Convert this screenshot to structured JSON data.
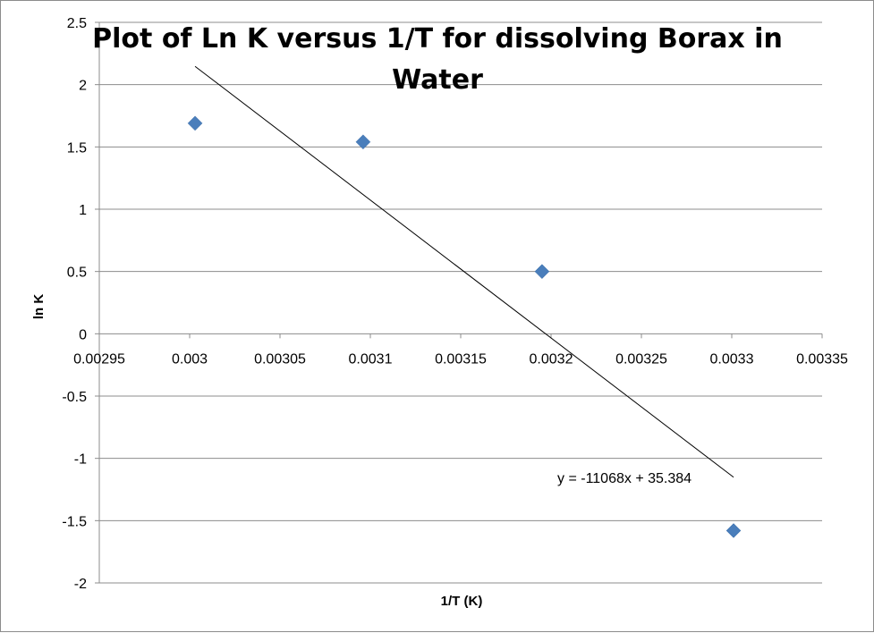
{
  "chart_data": {
    "type": "scatter",
    "title_line1": "Plot of Ln K versus 1/T for dissolving Borax in",
    "title_line2": "Water",
    "xlabel": "1/T  (K)",
    "ylabel": "ln K",
    "xlim": [
      0.00295,
      0.00335
    ],
    "ylim": [
      -2,
      2.5
    ],
    "x_ticks": [
      0.00295,
      0.003,
      0.00305,
      0.0031,
      0.00315,
      0.0032,
      0.00325,
      0.0033,
      0.00335
    ],
    "x_tick_labels": [
      "0.00295",
      "0.003",
      "0.00305",
      "0.0031",
      "0.00315",
      "0.0032",
      "0.00325",
      "0.0033",
      "0.00335"
    ],
    "y_ticks": [
      2.5,
      2,
      1.5,
      1,
      0.5,
      0,
      -0.5,
      -1,
      -1.5,
      -2
    ],
    "y_tick_labels": [
      "2.5",
      "2",
      "1.5",
      "1",
      "0.5",
      "0",
      "-0.5",
      "-1",
      "-1.5",
      "-2"
    ],
    "series": [
      {
        "name": "ln K",
        "color": "#4a7ebb",
        "points": [
          {
            "x": 0.003003,
            "y": 1.69
          },
          {
            "x": 0.003096,
            "y": 1.54
          },
          {
            "x": 0.003195,
            "y": 0.5
          },
          {
            "x": 0.003301,
            "y": -1.58
          }
        ]
      }
    ],
    "trendline": {
      "slope": -11068,
      "intercept": 35.384,
      "x_start": 0.003003,
      "x_end": 0.003301,
      "equation_label": "y = -11068x + 35.384",
      "color": "#000000"
    },
    "grid": true,
    "legend": "none"
  }
}
